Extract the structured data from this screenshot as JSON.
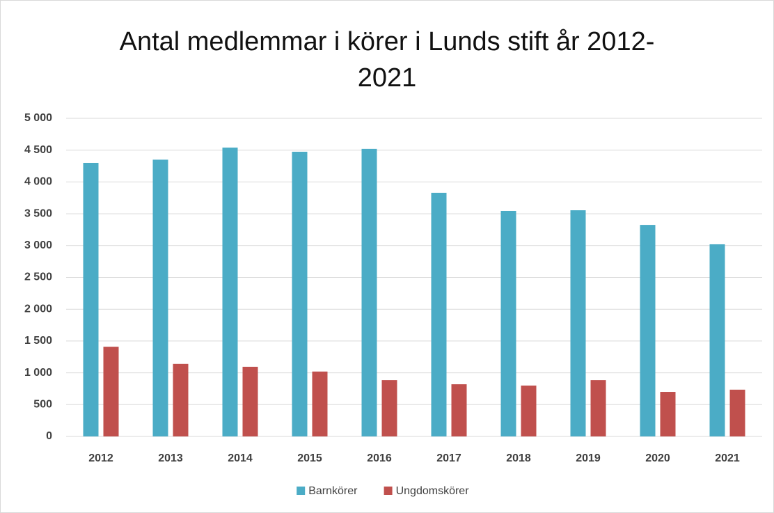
{
  "chart_data": {
    "type": "bar",
    "title": "Antal medlemmar i körer i Lunds stift år 2012-2021",
    "categories": [
      "2012",
      "2013",
      "2014",
      "2015",
      "2016",
      "2017",
      "2018",
      "2019",
      "2020",
      "2021"
    ],
    "series": [
      {
        "name": "Barnkörer",
        "color": "#4bacc6",
        "values": [
          4300,
          4350,
          4540,
          4475,
          4520,
          3830,
          3545,
          3555,
          3325,
          3020
        ]
      },
      {
        "name": "Ungdomskörer",
        "color": "#c0504d",
        "values": [
          1410,
          1140,
          1095,
          1020,
          885,
          820,
          800,
          885,
          700,
          735
        ]
      }
    ],
    "ylim": [
      0,
      5000
    ],
    "yticks": [
      0,
      500,
      {
        "value": 1000,
        "label": "1 000"
      },
      {
        "value": 1500,
        "label": "1 500"
      },
      {
        "value": 2000,
        "label": "2 000"
      },
      {
        "value": 2500,
        "label": "2 500"
      },
      {
        "value": 3000,
        "label": "3 000"
      },
      {
        "value": 3500,
        "label": "3 500"
      },
      {
        "value": 4000,
        "label": "4 000"
      },
      {
        "value": 4500,
        "label": "4 500"
      },
      {
        "value": 5000,
        "label": "5 000"
      }
    ],
    "grid": true,
    "legend": "bottom"
  }
}
